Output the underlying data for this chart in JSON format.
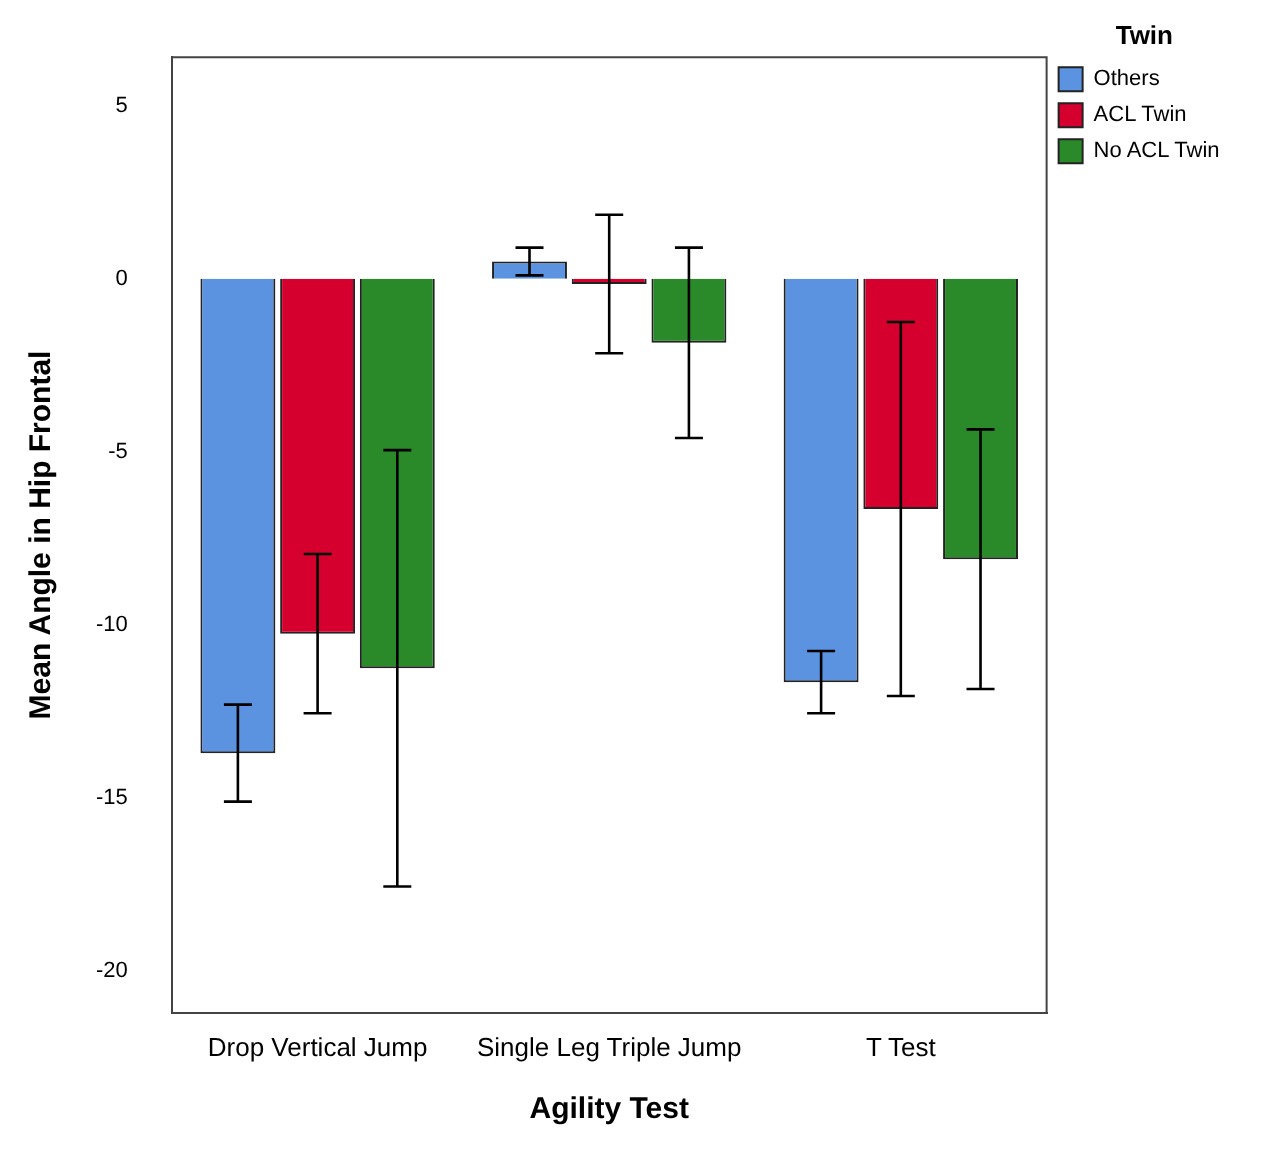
{
  "chart_data": {
    "type": "bar",
    "xlabel": "Agility Test",
    "ylabel": "Mean Angle in Hip Frontal",
    "legend_title": "Twin",
    "categories": [
      "Drop Vertical Jump",
      "Single Leg Triple Jump",
      "T Test"
    ],
    "series": [
      {
        "name": "Others",
        "color": "#5b93e0",
        "values": [
          -13.7,
          0.5,
          -11.65
        ],
        "errors": [
          1.4,
          0.4,
          0.9
        ]
      },
      {
        "name": "ACL Twin",
        "color": "#d6002e",
        "values": [
          -10.25,
          -0.15,
          -6.65
        ],
        "errors": [
          2.3,
          2.0,
          5.4
        ]
      },
      {
        "name": "No ACL Twin",
        "color": "#2a8a2a",
        "values": [
          -11.25,
          -1.85,
          -8.1
        ],
        "errors": [
          6.3,
          2.75,
          3.75
        ]
      }
    ],
    "ylim": [
      -21.2,
      6.4
    ],
    "yticks": [
      5,
      0,
      -5,
      -10,
      -15,
      -20
    ],
    "grid": false,
    "legend": "top right"
  }
}
